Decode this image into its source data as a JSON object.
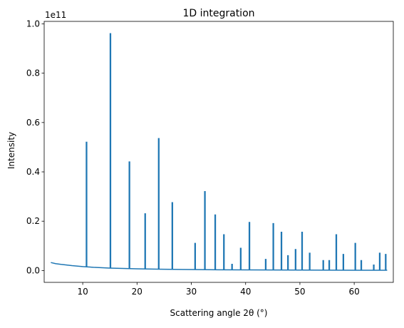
{
  "chart_data": {
    "type": "line",
    "title": "1D integration",
    "xlabel": "Scattering angle 2θ (°)",
    "ylabel": "Intensity",
    "y_multiplier_label": "1e11",
    "x_ticks": [
      10,
      20,
      30,
      40,
      50,
      60
    ],
    "y_ticks": [
      0.0,
      0.2,
      0.4,
      0.6,
      0.8,
      1.0
    ],
    "y_tick_labels": [
      "0.0",
      "0.2",
      "0.4",
      "0.6",
      "0.8",
      "1.0"
    ],
    "xlim": [
      2.9,
      67.2
    ],
    "ylim": [
      -0.048,
      1.01
    ],
    "y_scale": 100000000000.0,
    "grid": false,
    "line_color": "#1f77b4",
    "background": {
      "x": [
        4.2,
        5,
        6,
        8,
        10,
        12,
        15,
        20,
        25,
        30,
        35,
        40,
        50,
        60,
        66
      ],
      "y": [
        0.032,
        0.028,
        0.025,
        0.02,
        0.016,
        0.013,
        0.01,
        0.007,
        0.005,
        0.004,
        0.003,
        0.0025,
        0.0018,
        0.0012,
        0.001
      ]
    },
    "peaks": [
      {
        "x": 10.7,
        "y": 0.52
      },
      {
        "x": 15.1,
        "y": 0.96
      },
      {
        "x": 18.6,
        "y": 0.44
      },
      {
        "x": 21.5,
        "y": 0.23
      },
      {
        "x": 24.0,
        "y": 0.535
      },
      {
        "x": 26.5,
        "y": 0.275
      },
      {
        "x": 30.7,
        "y": 0.11
      },
      {
        "x": 32.5,
        "y": 0.32
      },
      {
        "x": 34.4,
        "y": 0.225
      },
      {
        "x": 36.0,
        "y": 0.145
      },
      {
        "x": 37.5,
        "y": 0.025
      },
      {
        "x": 39.1,
        "y": 0.09
      },
      {
        "x": 40.7,
        "y": 0.195
      },
      {
        "x": 43.7,
        "y": 0.045
      },
      {
        "x": 45.1,
        "y": 0.19
      },
      {
        "x": 46.6,
        "y": 0.155
      },
      {
        "x": 47.8,
        "y": 0.06
      },
      {
        "x": 49.2,
        "y": 0.085
      },
      {
        "x": 50.4,
        "y": 0.155
      },
      {
        "x": 51.8,
        "y": 0.07
      },
      {
        "x": 54.3,
        "y": 0.04
      },
      {
        "x": 55.4,
        "y": 0.04
      },
      {
        "x": 56.7,
        "y": 0.145
      },
      {
        "x": 58.0,
        "y": 0.065
      },
      {
        "x": 60.2,
        "y": 0.11
      },
      {
        "x": 61.3,
        "y": 0.04
      },
      {
        "x": 63.6,
        "y": 0.022
      },
      {
        "x": 64.7,
        "y": 0.07
      },
      {
        "x": 65.8,
        "y": 0.065
      }
    ]
  }
}
